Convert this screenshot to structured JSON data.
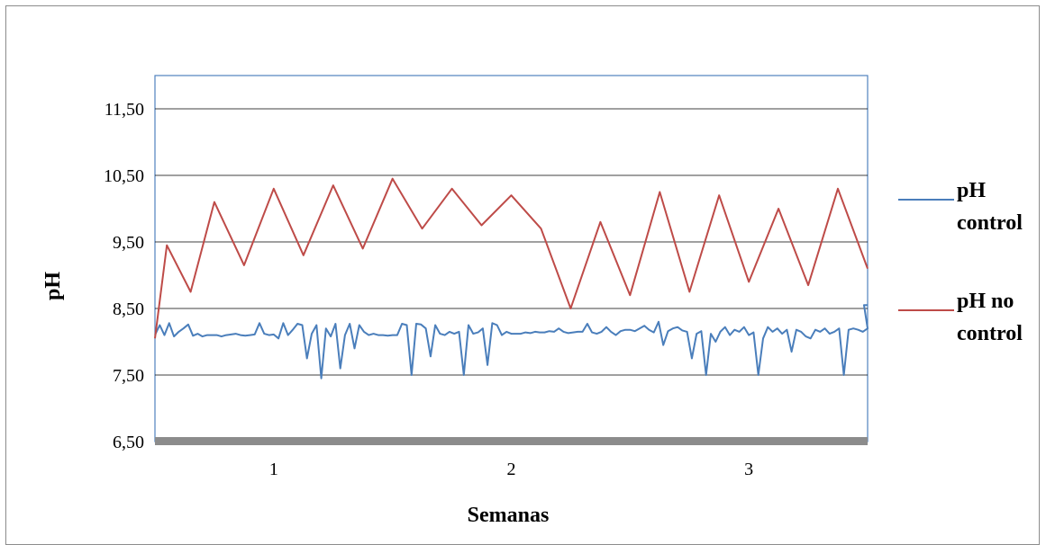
{
  "chart_data": {
    "type": "line",
    "title": "",
    "xlabel": "Semanas",
    "ylabel": "pH",
    "ylim": [
      6.5,
      12.0
    ],
    "y_ticks": [
      "6,50",
      "7,50",
      "8,50",
      "9,50",
      "10,50",
      "11,50"
    ],
    "categories": [
      "1",
      "2",
      "3"
    ],
    "grid": true,
    "legend_position": "right",
    "series": [
      {
        "name": "pH control",
        "color": "#4a7ebb",
        "x": [
          0.0,
          0.04,
          0.08,
          0.12,
          0.16,
          0.2,
          0.24,
          0.28,
          0.32,
          0.36,
          0.4,
          0.44,
          0.48,
          0.52,
          0.56,
          0.6,
          0.64,
          0.68,
          0.72,
          0.76,
          0.8,
          0.84,
          0.88,
          0.92,
          0.96,
          1.0,
          1.04,
          1.08,
          1.12,
          1.16,
          1.2,
          1.24,
          1.28,
          1.32,
          1.36,
          1.4,
          1.44,
          1.48,
          1.52,
          1.56,
          1.6,
          1.64,
          1.68,
          1.72,
          1.76,
          1.8,
          1.84,
          1.88,
          1.92,
          1.96,
          2.0,
          2.04,
          2.08,
          2.12,
          2.16,
          2.2,
          2.24,
          2.28,
          2.32,
          2.36,
          2.4,
          2.44,
          2.48,
          2.52,
          2.56,
          2.6,
          2.64,
          2.68,
          2.72,
          2.76,
          2.8,
          2.84,
          2.88,
          2.92,
          2.96,
          3.0,
          3.04,
          3.08,
          3.12,
          3.16,
          3.2,
          3.24,
          3.28,
          3.32,
          3.36,
          3.4,
          3.44,
          3.48,
          3.52,
          3.56,
          3.6,
          3.64,
          3.68,
          3.72,
          3.76,
          3.8,
          3.84,
          3.88,
          3.92,
          3.96,
          4.0,
          4.04,
          4.08,
          4.12,
          4.16,
          4.2,
          4.24,
          4.28,
          4.32,
          4.36,
          4.4,
          4.44,
          4.48,
          4.52,
          4.56,
          4.6,
          4.64,
          4.68,
          4.72,
          4.76,
          4.8,
          4.84,
          4.88,
          4.92,
          4.96,
          5.0,
          5.04,
          5.08,
          5.12,
          5.16,
          5.2,
          5.24,
          5.28,
          5.32,
          5.36,
          5.4,
          5.44,
          5.48,
          5.52,
          5.56,
          5.6,
          5.64,
          5.68,
          5.72,
          5.76,
          5.8,
          5.84,
          5.88,
          5.92,
          5.96,
          6.0
        ],
        "y": [
          8.1,
          8.25,
          8.1,
          8.28,
          8.08,
          8.15,
          8.2,
          8.26,
          8.09,
          8.12,
          8.08,
          8.1,
          8.1,
          8.1,
          8.08,
          8.1,
          8.11,
          8.12,
          8.1,
          8.09,
          8.1,
          8.11,
          8.28,
          8.12,
          8.1,
          8.11,
          8.05,
          8.28,
          8.1,
          8.18,
          8.27,
          8.25,
          7.75,
          8.12,
          8.25,
          7.45,
          8.2,
          8.08,
          8.27,
          7.6,
          8.1,
          8.27,
          7.9,
          8.25,
          8.15,
          8.1,
          8.12,
          8.1,
          8.1,
          8.09,
          8.1,
          8.1,
          8.27,
          8.25,
          7.5,
          8.27,
          8.26,
          8.2,
          7.78,
          8.25,
          8.12,
          8.1,
          8.15,
          8.12,
          8.15,
          7.5,
          8.25,
          8.12,
          8.14,
          8.2,
          7.65,
          8.28,
          8.25,
          8.1,
          8.15,
          8.12,
          8.12,
          8.12,
          8.14,
          8.13,
          8.15,
          8.14,
          8.14,
          8.16,
          8.15,
          8.2,
          8.15,
          8.13,
          8.14,
          8.15,
          8.15,
          8.27,
          8.14,
          8.12,
          8.15,
          8.22,
          8.15,
          8.1,
          8.16,
          8.18,
          8.18,
          8.16,
          8.2,
          8.24,
          8.18,
          8.14,
          8.3,
          7.95,
          8.16,
          8.2,
          8.22,
          8.17,
          8.15,
          7.75,
          8.12,
          8.16,
          7.5,
          8.12,
          8.0,
          8.15,
          8.22,
          8.1,
          8.18,
          8.15,
          8.22,
          8.1,
          8.14,
          7.5,
          8.05,
          8.22,
          8.15,
          8.2,
          8.12,
          8.18,
          7.85,
          8.18,
          8.15,
          8.08,
          8.05,
          8.18,
          8.15,
          8.2,
          8.12,
          8.15,
          8.2,
          7.5,
          8.18,
          8.2,
          8.18,
          8.15,
          8.2
        ]
      },
      {
        "name": "pH no control",
        "color": "#be4b48",
        "x": [
          0.0,
          0.1,
          0.3,
          0.5,
          0.75,
          1.0,
          1.25,
          1.5,
          1.75,
          2.0,
          2.25,
          2.5,
          2.75,
          3.0,
          3.25,
          3.5,
          3.75,
          4.0,
          4.25,
          4.5,
          4.75,
          5.0,
          5.25,
          5.5,
          5.75,
          6.0
        ],
        "y": [
          8.05,
          9.45,
          8.75,
          10.1,
          9.15,
          10.3,
          9.3,
          10.35,
          9.4,
          10.45,
          9.7,
          10.3,
          9.75,
          10.2,
          9.7,
          8.5,
          9.8,
          8.7,
          10.25,
          8.75,
          10.2,
          8.9,
          10.0,
          8.85,
          10.3,
          9.1
        ]
      }
    ]
  }
}
